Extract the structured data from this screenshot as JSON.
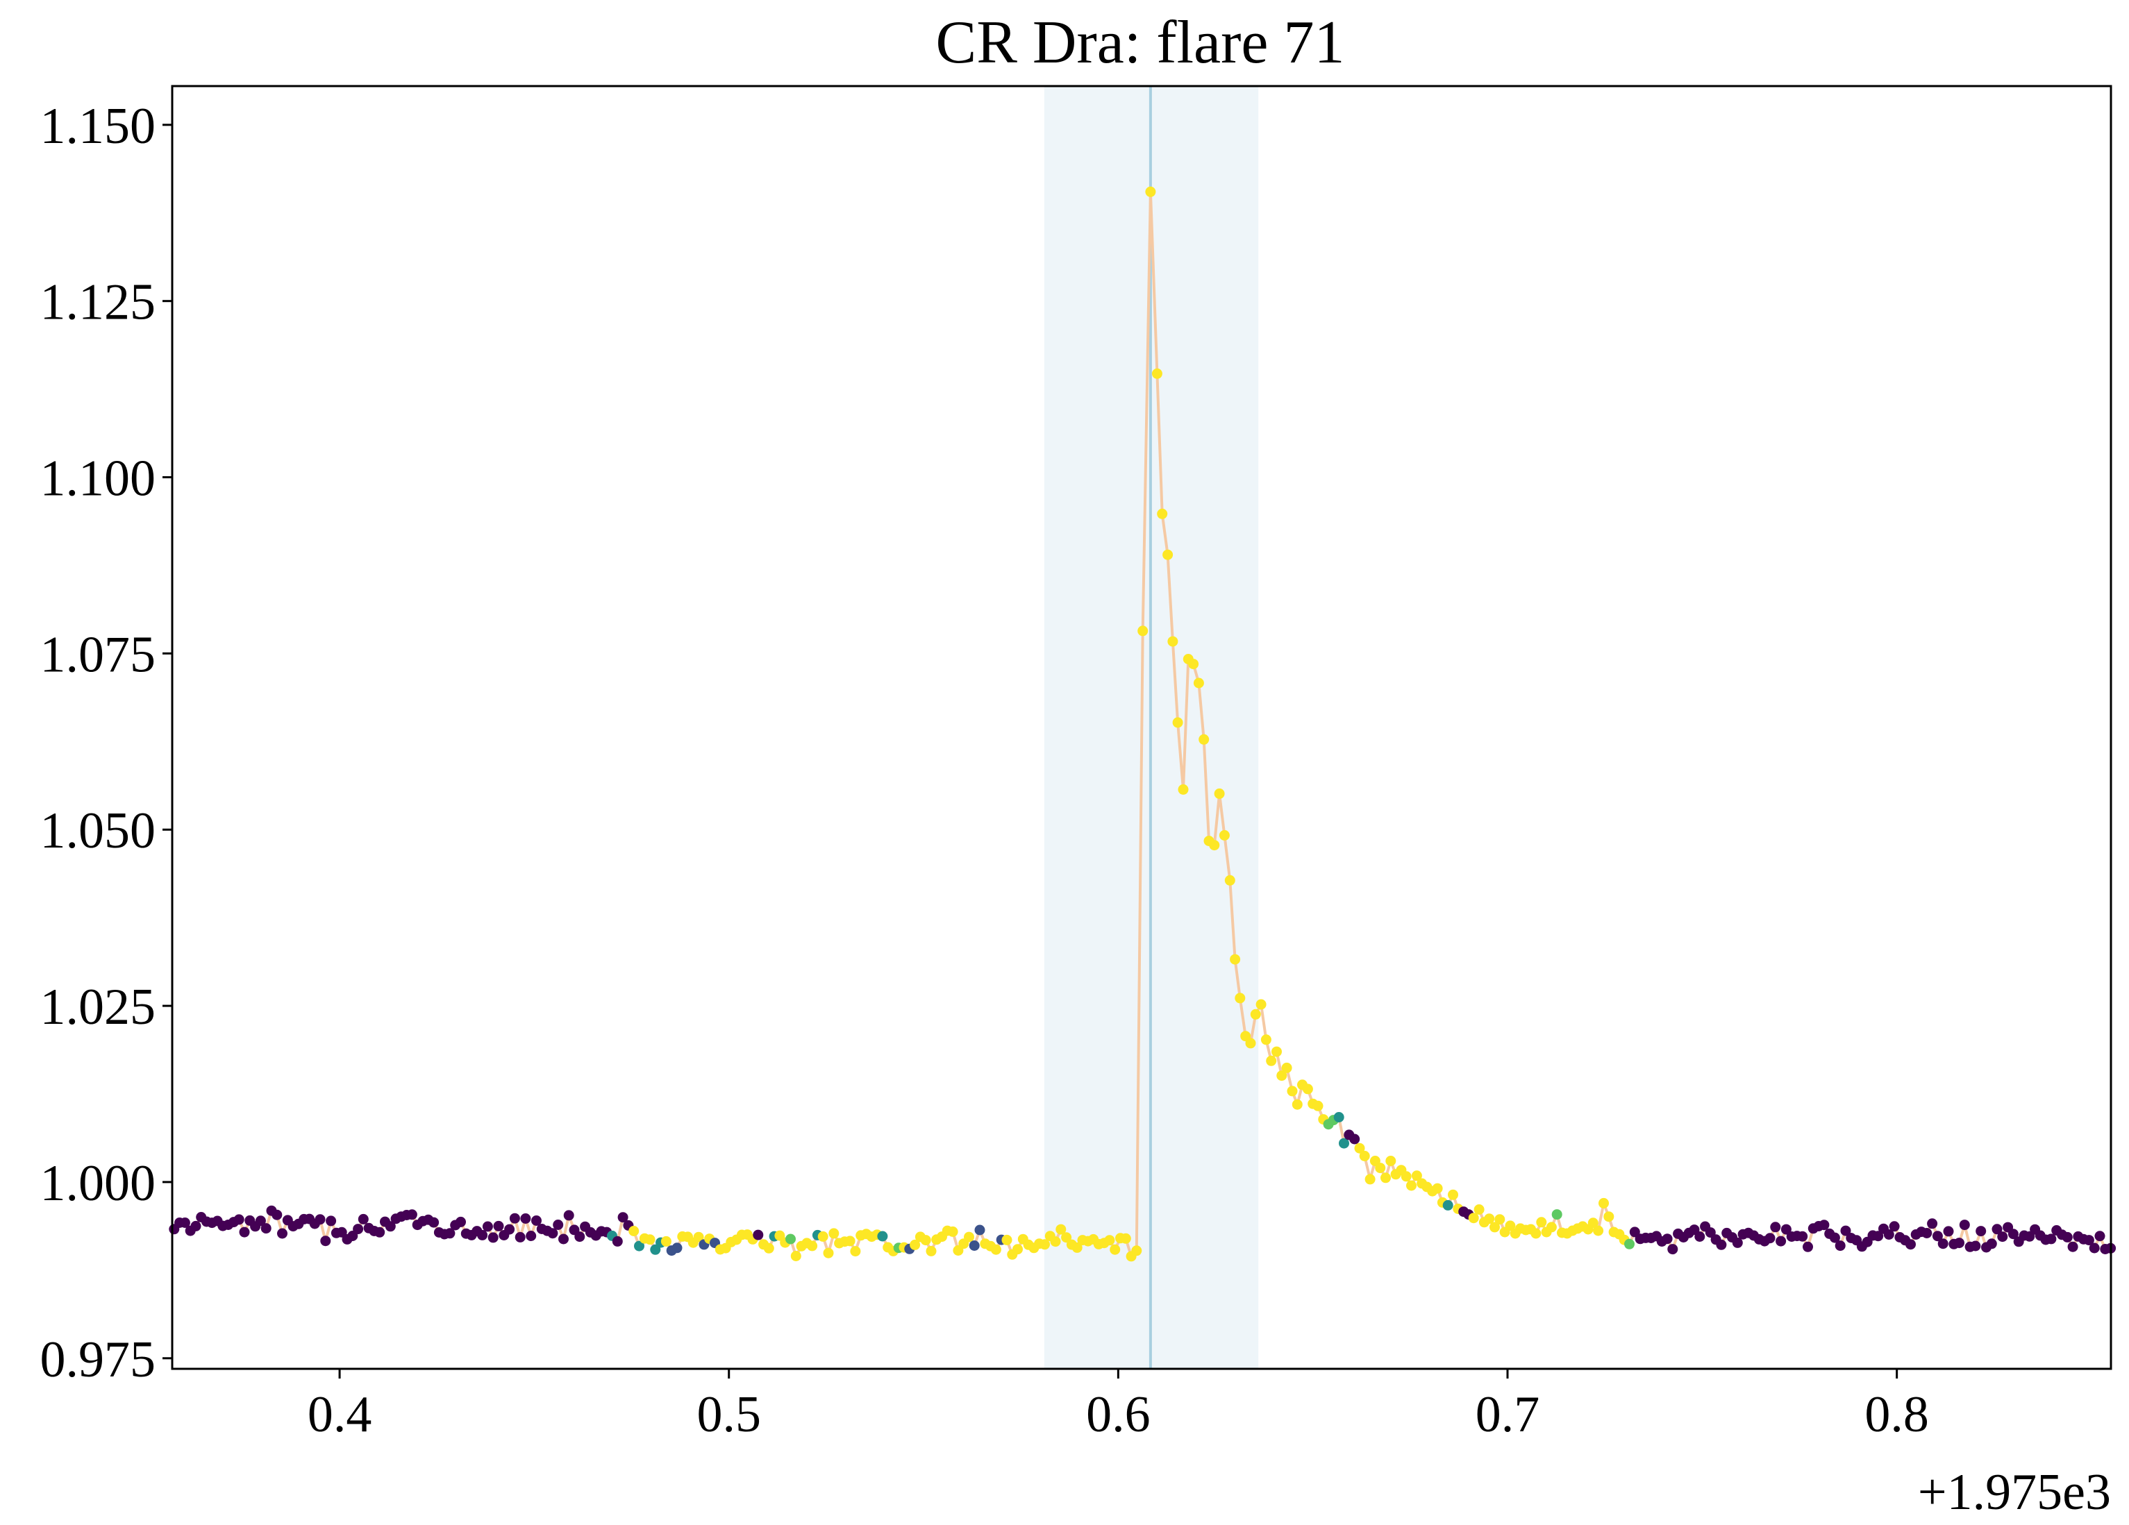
{
  "chart_data": {
    "type": "scatter",
    "title": "CR Dra: flare 71",
    "xlabel": "",
    "ylabel": "",
    "x_offset_label": "+1.975e3",
    "x_offset": 1975,
    "xlim": [
      0.357,
      0.855
    ],
    "ylim": [
      0.9735,
      1.1555
    ],
    "xticks": [
      0.4,
      0.5,
      0.6,
      0.7,
      0.8
    ],
    "xtick_labels": [
      "0.4",
      "0.5",
      "0.6",
      "0.7",
      "0.8"
    ],
    "yticks": [
      0.975,
      1.0,
      1.025,
      1.05,
      1.075,
      1.1,
      1.125,
      1.15
    ],
    "ytick_labels": [
      "0.975",
      "1.000",
      "1.025",
      "1.050",
      "1.075",
      "1.100",
      "1.125",
      "1.150"
    ],
    "grid": false,
    "legend": "none",
    "flare_window": [
      0.581,
      0.636
    ],
    "flare_peak_line_x": 0.6083,
    "colors": {
      "quiescent": "#440154",
      "flare": "#fde725",
      "connector_line": "#f5c9a3",
      "window_band": "#eef5f9",
      "peak_line": "#a8cfe0",
      "mid_blue": "#3b528b",
      "mid_teal": "#21918c",
      "mid_green": "#5ec962"
    },
    "flare_points": [
      [
        0.6063,
        1.0782
      ],
      [
        0.6083,
        1.1405
      ],
      [
        0.61,
        1.1147
      ],
      [
        0.6113,
        1.0948
      ],
      [
        0.6127,
        1.089
      ],
      [
        0.614,
        1.0767
      ],
      [
        0.6153,
        1.0652
      ],
      [
        0.6167,
        1.0557
      ],
      [
        0.618,
        1.0742
      ],
      [
        0.6193,
        1.0735
      ],
      [
        0.6207,
        1.0708
      ],
      [
        0.622,
        1.0628
      ],
      [
        0.6233,
        1.0484
      ],
      [
        0.6247,
        1.0478
      ],
      [
        0.626,
        1.0551
      ],
      [
        0.6273,
        1.0492
      ],
      [
        0.6287,
        1.0428
      ],
      [
        0.63,
        1.0316
      ],
      [
        0.6313,
        1.0261
      ],
      [
        0.6327,
        1.0207
      ],
      [
        0.634,
        1.0197
      ],
      [
        0.6353,
        1.0238
      ],
      [
        0.6367,
        1.0252
      ],
      [
        0.638,
        1.0202
      ],
      [
        0.6393,
        1.0172
      ],
      [
        0.6407,
        1.0185
      ],
      [
        0.642,
        1.0151
      ],
      [
        0.6433,
        1.0162
      ],
      [
        0.6447,
        1.0129
      ],
      [
        0.646,
        1.011
      ],
      [
        0.6473,
        1.0138
      ],
      [
        0.6487,
        1.0132
      ],
      [
        0.65,
        1.0111
      ],
      [
        0.6513,
        1.0108
      ],
      [
        0.6527,
        1.0089
      ],
      [
        0.654,
        1.0082
      ],
      [
        0.6553,
        1.0088
      ],
      [
        0.6567,
        1.0092
      ],
      [
        0.658,
        1.0055
      ],
      [
        0.6593,
        1.0067
      ],
      [
        0.6607,
        1.0061
      ],
      [
        0.662,
        1.0048
      ],
      [
        0.6633,
        1.0037
      ],
      [
        0.6647,
        1.0004
      ],
      [
        0.666,
        1.003
      ],
      [
        0.6673,
        1.002
      ],
      [
        0.6687,
        1.0006
      ],
      [
        0.67,
        1.003
      ],
      [
        0.6713,
        1.0011
      ],
      [
        0.6727,
        1.0017
      ],
      [
        0.674,
        1.0008
      ],
      [
        0.6753,
        0.9995
      ],
      [
        0.6767,
        1.0009
      ],
      [
        0.678,
        0.9998
      ],
      [
        0.6793,
        0.9993
      ],
      [
        0.6807,
        0.9987
      ],
      [
        0.682,
        0.9991
      ],
      [
        0.6833,
        0.9971
      ],
      [
        0.6847,
        0.9967
      ],
      [
        0.686,
        0.9982
      ],
      [
        0.6873,
        0.9962
      ],
      [
        0.6887,
        0.9958
      ],
      [
        0.69,
        0.9954
      ],
      [
        0.6913,
        0.9949
      ],
      [
        0.6927,
        0.9961
      ],
      [
        0.694,
        0.9943
      ],
      [
        0.6953,
        0.9948
      ],
      [
        0.6967,
        0.9936
      ],
      [
        0.698,
        0.9947
      ],
      [
        0.6993,
        0.9929
      ],
      [
        0.7007,
        0.9938
      ],
      [
        0.702,
        0.9927
      ],
      [
        0.7033,
        0.9934
      ],
      [
        0.7047,
        0.9932
      ],
      [
        0.706,
        0.9933
      ],
      [
        0.7073,
        0.9927
      ],
      [
        0.7087,
        0.9943
      ],
      [
        0.71,
        0.9929
      ],
      [
        0.7113,
        0.9936
      ],
      [
        0.7127,
        0.9954
      ],
      [
        0.714,
        0.9928
      ],
      [
        0.7153,
        0.9927
      ],
      [
        0.7167,
        0.9931
      ],
      [
        0.718,
        0.9934
      ],
      [
        0.7193,
        0.9937
      ],
      [
        0.7207,
        0.9933
      ],
      [
        0.722,
        0.9942
      ],
      [
        0.7233,
        0.9931
      ],
      [
        0.7247,
        0.997
      ],
      [
        0.726,
        0.9951
      ],
      [
        0.7273,
        0.9929
      ],
      [
        0.7287,
        0.9926
      ],
      [
        0.73,
        0.9918
      ],
      [
        0.7313,
        0.9912
      ]
    ]
  }
}
